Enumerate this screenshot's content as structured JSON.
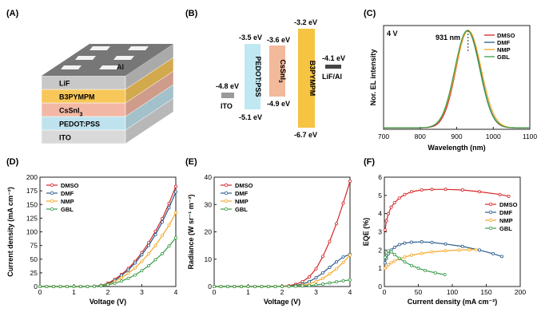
{
  "panels": {
    "A": {
      "label": "(A)",
      "layers": [
        {
          "name": "ITO",
          "color": "#d9d9d9"
        },
        {
          "name": "PEDOT:PSS",
          "color": "#bfe3ee"
        },
        {
          "name": "CsSnI3",
          "color": "#f3b8a5"
        },
        {
          "name": "B3PYMPM",
          "color": "#f7c75a"
        },
        {
          "name": "LiF",
          "color": "#c8c8c8"
        }
      ],
      "contact": "Al"
    },
    "B": {
      "label": "(B)",
      "levels": [
        {
          "name": "ITO",
          "top": "-4.8 eV",
          "color": "#9a9a9a"
        },
        {
          "name": "PEDOT:PSS",
          "top": "-3.5 eV",
          "bottom": "-5.1 eV",
          "color": "#bfe8f2"
        },
        {
          "name": "CsSnI3",
          "top": "-3.6 eV",
          "bottom": "-4.9 eV",
          "color": "#f2b99b"
        },
        {
          "name": "B3PYMPM",
          "top": "-3.2 eV",
          "bottom": "-6.7 eV",
          "color": "#f6c342"
        },
        {
          "name": "LiF/Al",
          "top": "-4.1 eV",
          "color": "#444444"
        }
      ]
    },
    "C": {
      "label": "(C)",
      "annotation_voltage": "4 V",
      "annotation_peak": "931 nm"
    },
    "D": {
      "label": "(D)"
    },
    "E": {
      "label": "(E)"
    },
    "F": {
      "label": "(F)"
    }
  },
  "series_colors": {
    "DMSO": "#d62728",
    "DMF": "#2a5d8f",
    "NMP": "#f5a623",
    "GBL": "#3a9d4a"
  },
  "chart_data": [
    {
      "id": "C",
      "type": "line",
      "xlabel": "Wavelength (nm)",
      "ylabel": "Nor. EL intensity",
      "xlim": [
        700,
        1100
      ],
      "xticks": [
        700,
        800,
        900,
        1000,
        1100
      ],
      "ylim": [
        0,
        1.05
      ],
      "legend": "top-right",
      "series": [
        {
          "name": "DMSO",
          "peak": 931,
          "width": 33,
          "values": []
        },
        {
          "name": "DMF",
          "peak": 930,
          "width": 34,
          "values": []
        },
        {
          "name": "NMP",
          "peak": 932,
          "width": 35,
          "values": []
        },
        {
          "name": "GBL",
          "peak": 929,
          "width": 34,
          "values": []
        }
      ]
    },
    {
      "id": "D",
      "type": "line",
      "xlabel": "Voltage (V)",
      "ylabel": "Current density (mA cm⁻²)",
      "xlim": [
        0,
        4
      ],
      "ylim": [
        0,
        200
      ],
      "xticks": [
        0,
        1,
        2,
        3,
        4
      ],
      "yticks": [
        0,
        25,
        50,
        75,
        100,
        125,
        150,
        175,
        200
      ],
      "legend": "top-left",
      "x": [
        0,
        0.2,
        0.4,
        0.6,
        0.8,
        1.0,
        1.2,
        1.4,
        1.6,
        1.8,
        2.0,
        2.2,
        2.4,
        2.6,
        2.8,
        3.0,
        3.2,
        3.4,
        3.6,
        3.8,
        4.0
      ],
      "series": [
        {
          "name": "DMSO",
          "values": [
            0,
            0,
            0,
            0,
            0,
            0,
            0,
            0,
            0.5,
            2,
            6,
            13,
            22,
            33,
            46,
            62,
            80,
            101,
            124,
            152,
            183
          ]
        },
        {
          "name": "DMF",
          "values": [
            0,
            0,
            0,
            0,
            0,
            0,
            0,
            0,
            0.5,
            2,
            5,
            11,
            20,
            30,
            43,
            58,
            75,
            95,
            118,
            144,
            173
          ]
        },
        {
          "name": "NMP",
          "values": [
            0,
            0,
            0,
            0,
            0,
            0,
            0,
            0,
            0.3,
            1.5,
            4,
            9,
            16,
            24,
            34,
            46,
            60,
            75,
            93,
            112,
            135
          ]
        },
        {
          "name": "GBL",
          "values": [
            0,
            0,
            0,
            0,
            0,
            0,
            0,
            0,
            0.2,
            1,
            3,
            6,
            10,
            15,
            21,
            29,
            38,
            49,
            60,
            74,
            89
          ]
        }
      ]
    },
    {
      "id": "E",
      "type": "line",
      "xlabel": "Voltage (V)",
      "ylabel": "Radiance (W sr⁻¹ m⁻²)",
      "xlim": [
        0,
        4
      ],
      "ylim": [
        0,
        40
      ],
      "xticks": [
        0,
        1,
        2,
        3,
        4
      ],
      "yticks": [
        0,
        10,
        20,
        30,
        40
      ],
      "legend": "top-left",
      "x": [
        0,
        0.2,
        0.4,
        0.6,
        0.8,
        1.0,
        1.2,
        1.4,
        1.6,
        1.8,
        2.0,
        2.2,
        2.4,
        2.6,
        2.8,
        3.0,
        3.2,
        3.4,
        3.6,
        3.8,
        4.0
      ],
      "series": [
        {
          "name": "DMSO",
          "values": [
            0,
            0,
            0,
            0,
            0,
            0,
            0,
            0,
            0,
            0,
            0.1,
            0.3,
            0.8,
            1.8,
            3.5,
            6.5,
            11,
            16.5,
            23,
            30.5,
            38.5
          ]
        },
        {
          "name": "DMF",
          "values": [
            0,
            0,
            0,
            0,
            0,
            0,
            0,
            0,
            0,
            0,
            0.05,
            0.15,
            0.4,
            0.9,
            1.8,
            3.2,
            5,
            7,
            9,
            10.8,
            11.8
          ]
        },
        {
          "name": "NMP",
          "values": [
            0,
            0,
            0,
            0,
            0,
            0,
            0,
            0,
            0,
            0,
            0.03,
            0.1,
            0.2,
            0.5,
            1.0,
            1.8,
            3.0,
            4.6,
            6.5,
            8.8,
            11.5
          ]
        },
        {
          "name": "GBL",
          "values": [
            0,
            0,
            0,
            0,
            0,
            0,
            0,
            0,
            0,
            0,
            0.02,
            0.05,
            0.1,
            0.2,
            0.35,
            0.6,
            0.9,
            1.3,
            1.7,
            2.1,
            2.4
          ]
        }
      ]
    },
    {
      "id": "F",
      "type": "line",
      "xlabel": "Current density (mA cm⁻²)",
      "ylabel": "EQE (%)",
      "xlim": [
        0,
        200
      ],
      "ylim": [
        0,
        6
      ],
      "xticks": [
        0,
        50,
        100,
        150,
        200
      ],
      "yticks": [
        0,
        1,
        2,
        3,
        4,
        5,
        6
      ],
      "legend": "right",
      "series": [
        {
          "name": "DMSO",
          "x": [
            1,
            3,
            6,
            10,
            15,
            22,
            30,
            40,
            55,
            70,
            90,
            115,
            140,
            170,
            183
          ],
          "values": [
            3.1,
            3.6,
            4.0,
            4.35,
            4.6,
            4.85,
            5.05,
            5.2,
            5.3,
            5.33,
            5.33,
            5.3,
            5.2,
            5.05,
            4.95
          ]
        },
        {
          "name": "DMF",
          "x": [
            1,
            3,
            6,
            10,
            15,
            22,
            30,
            40,
            55,
            70,
            90,
            115,
            140,
            160,
            173
          ],
          "values": [
            1.3,
            1.55,
            1.8,
            2.0,
            2.15,
            2.3,
            2.38,
            2.43,
            2.45,
            2.42,
            2.33,
            2.2,
            2.0,
            1.8,
            1.65
          ]
        },
        {
          "name": "NMP",
          "x": [
            1,
            3,
            6,
            10,
            15,
            22,
            30,
            40,
            55,
            70,
            90,
            110,
            125,
            135
          ],
          "values": [
            1.0,
            1.1,
            1.2,
            1.3,
            1.4,
            1.52,
            1.62,
            1.72,
            1.82,
            1.9,
            1.96,
            2.0,
            2.02,
            2.03
          ]
        },
        {
          "name": "GBL",
          "x": [
            1,
            3,
            6,
            10,
            15,
            22,
            30,
            40,
            50,
            60,
            75,
            89
          ],
          "values": [
            1.6,
            1.85,
            1.95,
            1.9,
            1.75,
            1.55,
            1.35,
            1.15,
            1.0,
            0.88,
            0.75,
            0.65
          ]
        }
      ]
    }
  ]
}
